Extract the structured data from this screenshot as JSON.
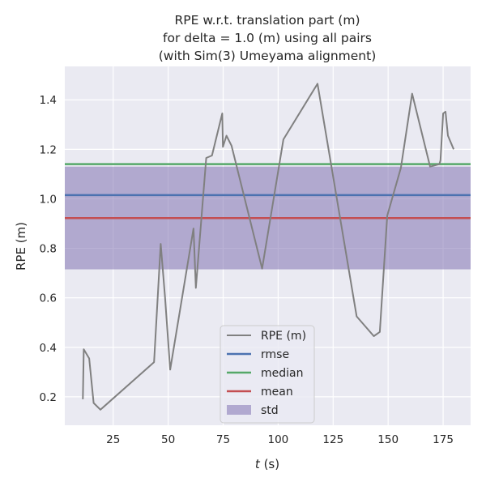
{
  "chart_data": {
    "type": "line",
    "title_lines": [
      "RPE w.r.t. translation part (m)",
      "for delta = 1.0 (m) using all pairs",
      "(with Sim(3) Umeyama alignment)"
    ],
    "xlabel_var": "t",
    "xlabel_unit": " (s)",
    "ylabel": "RPE (m)",
    "xlim": [
      3,
      187.5
    ],
    "ylim": [
      0.085,
      1.535
    ],
    "xticks": [
      25,
      50,
      75,
      100,
      125,
      150,
      175
    ],
    "yticks": [
      0.2,
      0.4,
      0.6,
      0.8,
      1.0,
      1.2,
      1.4
    ],
    "xtick_labels": [
      "25",
      "50",
      "75",
      "100",
      "125",
      "150",
      "175"
    ],
    "ytick_labels": [
      "0.2",
      "0.4",
      "0.6",
      "0.8",
      "1.0",
      "1.2",
      "1.4"
    ],
    "grid": true,
    "legend_position": "lower-center",
    "series": [
      {
        "name": "RPE (m)",
        "color": "#808080",
        "x": [
          11.2,
          11.6,
          14.1,
          16.1,
          19.2,
          43.6,
          46.6,
          48.6,
          50.9,
          61.5,
          62.6,
          67.3,
          69.9,
          74.6,
          74.9,
          76.5,
          78.8,
          92.7,
          102.4,
          117.9,
          135.7,
          143.5,
          146.2,
          149.6,
          155.8,
          160.9,
          169.1,
          173.3,
          173.8,
          175.0,
          176.1,
          177.2,
          179.8
        ],
        "y": [
          0.19,
          0.392,
          0.355,
          0.175,
          0.148,
          0.34,
          0.818,
          0.6,
          0.31,
          0.88,
          0.64,
          1.165,
          1.175,
          1.345,
          1.21,
          1.255,
          1.215,
          0.718,
          1.24,
          1.465,
          0.525,
          0.445,
          0.462,
          0.932,
          1.125,
          1.425,
          1.13,
          1.14,
          1.155,
          1.345,
          1.352,
          1.255,
          1.2
        ]
      }
    ],
    "hlines": [
      {
        "name": "rmse",
        "value": 1.015,
        "color": "#4c72b0"
      },
      {
        "name": "median",
        "value": 1.14,
        "color": "#55a868"
      },
      {
        "name": "mean",
        "value": 0.922,
        "color": "#c44e52"
      }
    ],
    "band": {
      "name": "std",
      "lower": 0.715,
      "upper": 1.13,
      "color": "#8172b3",
      "opacity": 0.55
    }
  }
}
